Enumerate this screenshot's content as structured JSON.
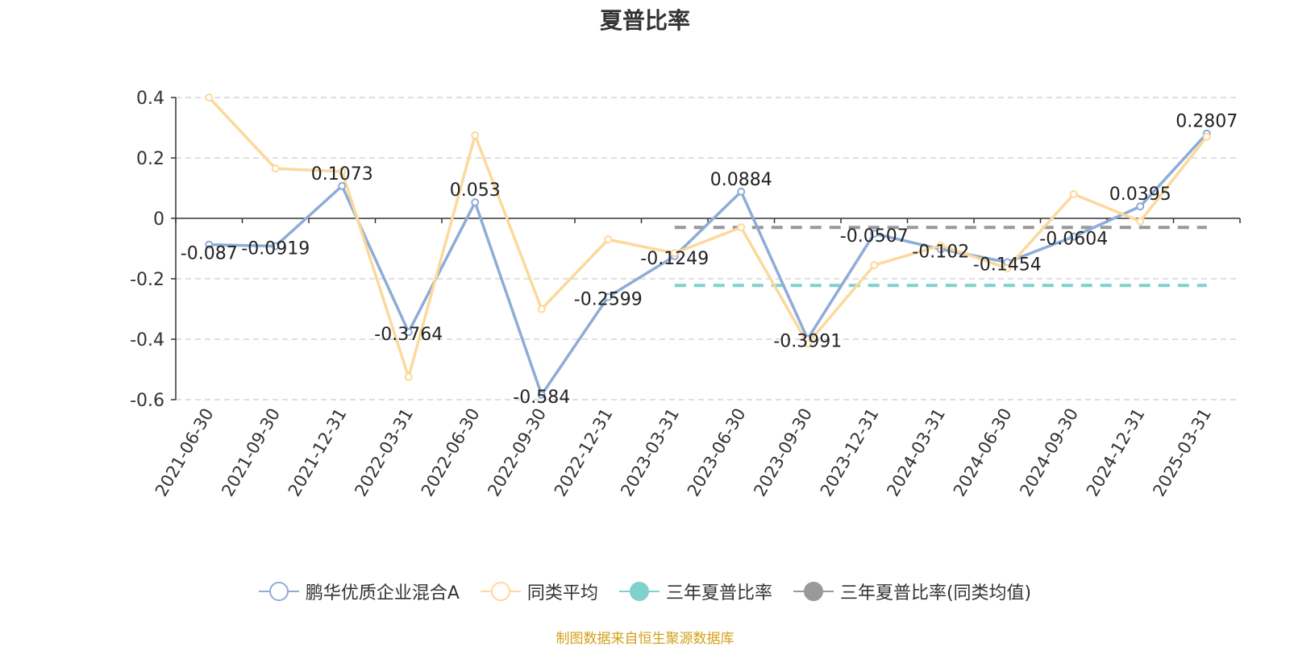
{
  "chart_data": {
    "type": "line",
    "title": "夏普比率",
    "categories": [
      "2021-06-30",
      "2021-09-30",
      "2021-12-31",
      "2022-03-31",
      "2022-06-30",
      "2022-09-30",
      "2022-12-31",
      "2023-03-31",
      "2023-06-30",
      "2023-09-30",
      "2023-12-31",
      "2024-03-31",
      "2024-06-30",
      "2024-09-30",
      "2024-12-31",
      "2025-03-31"
    ],
    "y_ticks": [
      "0.4",
      "0.2",
      "0",
      "-0.2",
      "-0.4",
      "-0.6"
    ],
    "ylim": [
      -0.6,
      0.4
    ],
    "grid": true,
    "legend_position": "bottom",
    "series": [
      {
        "name": "鹏华优质企业混合A",
        "color": "#8eacd8",
        "values": [
          -0.087,
          -0.0919,
          0.1073,
          -0.3764,
          0.053,
          -0.584,
          -0.2599,
          -0.1249,
          0.0884,
          -0.3991,
          -0.0507,
          -0.102,
          -0.1454,
          -0.0604,
          0.0395,
          0.2807
        ],
        "labels": [
          "-0.087",
          "-0.0919",
          "0.1073",
          "-0.3764",
          "0.053",
          "-0.584",
          "-0.2599",
          "-0.1249",
          "0.0884",
          "-0.3991",
          "-0.0507",
          "-0.102",
          "-0.1454",
          "-0.0604",
          "0.0395",
          "0.2807"
        ]
      },
      {
        "name": "同类平均",
        "color": "#fcd99b",
        "values": [
          0.4,
          0.165,
          0.155,
          -0.525,
          0.275,
          -0.3,
          -0.07,
          -0.115,
          -0.03,
          -0.415,
          -0.155,
          -0.09,
          -0.165,
          0.08,
          -0.01,
          0.27
        ]
      }
    ],
    "reference_lines": [
      {
        "name": "三年夏普比率",
        "color": "#7fd1cc",
        "value": -0.222,
        "from": "2023-03-31",
        "to": "2025-03-31"
      },
      {
        "name": "三年夏普比率(同类均值)",
        "color": "#999999",
        "value": -0.03,
        "from": "2023-03-31",
        "to": "2025-03-31"
      }
    ]
  },
  "legend": [
    {
      "label": "鹏华优质企业混合A",
      "color": "#8eacd8",
      "style": "hollow"
    },
    {
      "label": "同类平均",
      "color": "#fcd99b",
      "style": "hollow"
    },
    {
      "label": "三年夏普比率",
      "color": "#7fd1cc",
      "style": "filled"
    },
    {
      "label": "三年夏普比率(同类均值)",
      "color": "#999999",
      "style": "filled"
    }
  ],
  "source": "制图数据来自恒生聚源数据库"
}
